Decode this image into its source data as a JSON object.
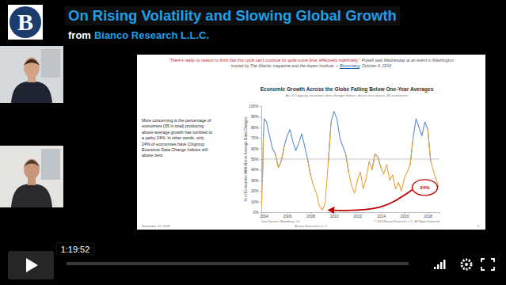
{
  "header": {
    "logo_text": "B",
    "title": "On Rising Volatility and Slowing Global Growth",
    "from": "from",
    "company": "Bianco Research L.L.C."
  },
  "slide": {
    "quote": "“There's really no reason to think that this cycle can't continue for quite some time, effectively indefinitely,”",
    "attribution": "Powell said Wednesday at an event in Washington hosted by The Atlantic magazine and the Aspen Institute. –",
    "source": "Bloomberg",
    "source_date": ", October 4, 2018",
    "commentary": "More concerning is the percentage of economies (35 in total) producing above-average growth has tumbled to a paltry 24%. In other words, only 24% of economies have Citigroup Economic Data Change Indices still above zero.",
    "footer_date": "November 15, 2018",
    "footer_company": "Bianco Research L.L.C.",
    "page_number": 3
  },
  "chart_data": {
    "type": "line",
    "title": "Economic Growth Across the Globe Falling Below One-Year Averages",
    "subtitle": "As of Citigroup economic data change indices above zero across 35 economies",
    "y_label": "% of Economies With Above-Average Data Changes",
    "source": "Data Sources: Bloomberg, Citi",
    "copyright": "© 2018 Bianco Research L.L.C. All Rights Reserved",
    "x": [
      2003.82,
      2003.9,
      2003.97,
      2004.05,
      2004.25,
      2004.5,
      2004.75,
      2005,
      2005.25,
      2005.5,
      2005.75,
      2006,
      2006.25,
      2006.5,
      2006.75,
      2007,
      2007.25,
      2007.5,
      2007.75,
      2008,
      2008.25,
      2008.5,
      2008.75,
      2009,
      2009.25,
      2009.5,
      2009.75,
      2010,
      2010.25,
      2010.5,
      2010.75,
      2011,
      2011.25,
      2011.5,
      2011.75,
      2012,
      2012.25,
      2012.5,
      2012.75,
      2013,
      2013.25,
      2013.5,
      2013.75,
      2014,
      2014.25,
      2014.5,
      2014.75,
      2015,
      2015.25,
      2015.5,
      2015.75,
      2016,
      2016.25,
      2016.5,
      2016.75,
      2017,
      2017.25,
      2017.5,
      2017.75,
      2018,
      2018.25,
      2018.5,
      2018.75,
      2018.9
    ],
    "series": [
      {
        "color": "#5b8fd0",
        "values": [
          null,
          30,
          70,
          88,
          85,
          72,
          60,
          55,
          42,
          48,
          62,
          72,
          78,
          66,
          58,
          65,
          74,
          62,
          50,
          35,
          null,
          null,
          null,
          null,
          null,
          45,
          85,
          95,
          88,
          70,
          62,
          55,
          38,
          null,
          null,
          null,
          null,
          null,
          null,
          null,
          40,
          55,
          52,
          42,
          null,
          null,
          null,
          null,
          null,
          null,
          null,
          null,
          null,
          45,
          70,
          88,
          80,
          72,
          85,
          78,
          48,
          null,
          null,
          null
        ]
      },
      {
        "color": "#e8a33c",
        "values": [
          5,
          30,
          70,
          null,
          null,
          null,
          null,
          55,
          42,
          48,
          62,
          null,
          null,
          null,
          null,
          null,
          null,
          null,
          50,
          35,
          25,
          18,
          6,
          2,
          8,
          45,
          85,
          null,
          null,
          null,
          null,
          55,
          38,
          25,
          18,
          30,
          38,
          22,
          32,
          48,
          40,
          55,
          52,
          42,
          36,
          45,
          30,
          35,
          22,
          28,
          20,
          32,
          38,
          45,
          70,
          null,
          null,
          null,
          null,
          78,
          48,
          38,
          30,
          24
        ]
      }
    ],
    "xlim": [
      2003.8,
      2019
    ],
    "xticks": [
      2004,
      2006,
      2008,
      2010,
      2012,
      2014,
      2016,
      2018
    ],
    "ylim": [
      0,
      100
    ],
    "yticks": [
      {
        "value": 0,
        "label": "0%"
      },
      {
        "value": 10,
        "label": "10%"
      },
      {
        "value": 20,
        "label": "20%"
      },
      {
        "value": 30,
        "label": "30%"
      },
      {
        "value": 40,
        "label": "40%"
      },
      {
        "value": 50,
        "label": "50%"
      },
      {
        "value": 60,
        "label": "60%"
      },
      {
        "value": 70,
        "label": "70%"
      },
      {
        "value": 80,
        "label": "80%"
      },
      {
        "value": 90,
        "label": "90%"
      },
      {
        "value": 100,
        "label": "100%"
      }
    ],
    "hline": 50,
    "grid": false,
    "annotations": [
      {
        "text": "24%"
      }
    ]
  },
  "player": {
    "time": "1:19:52"
  }
}
